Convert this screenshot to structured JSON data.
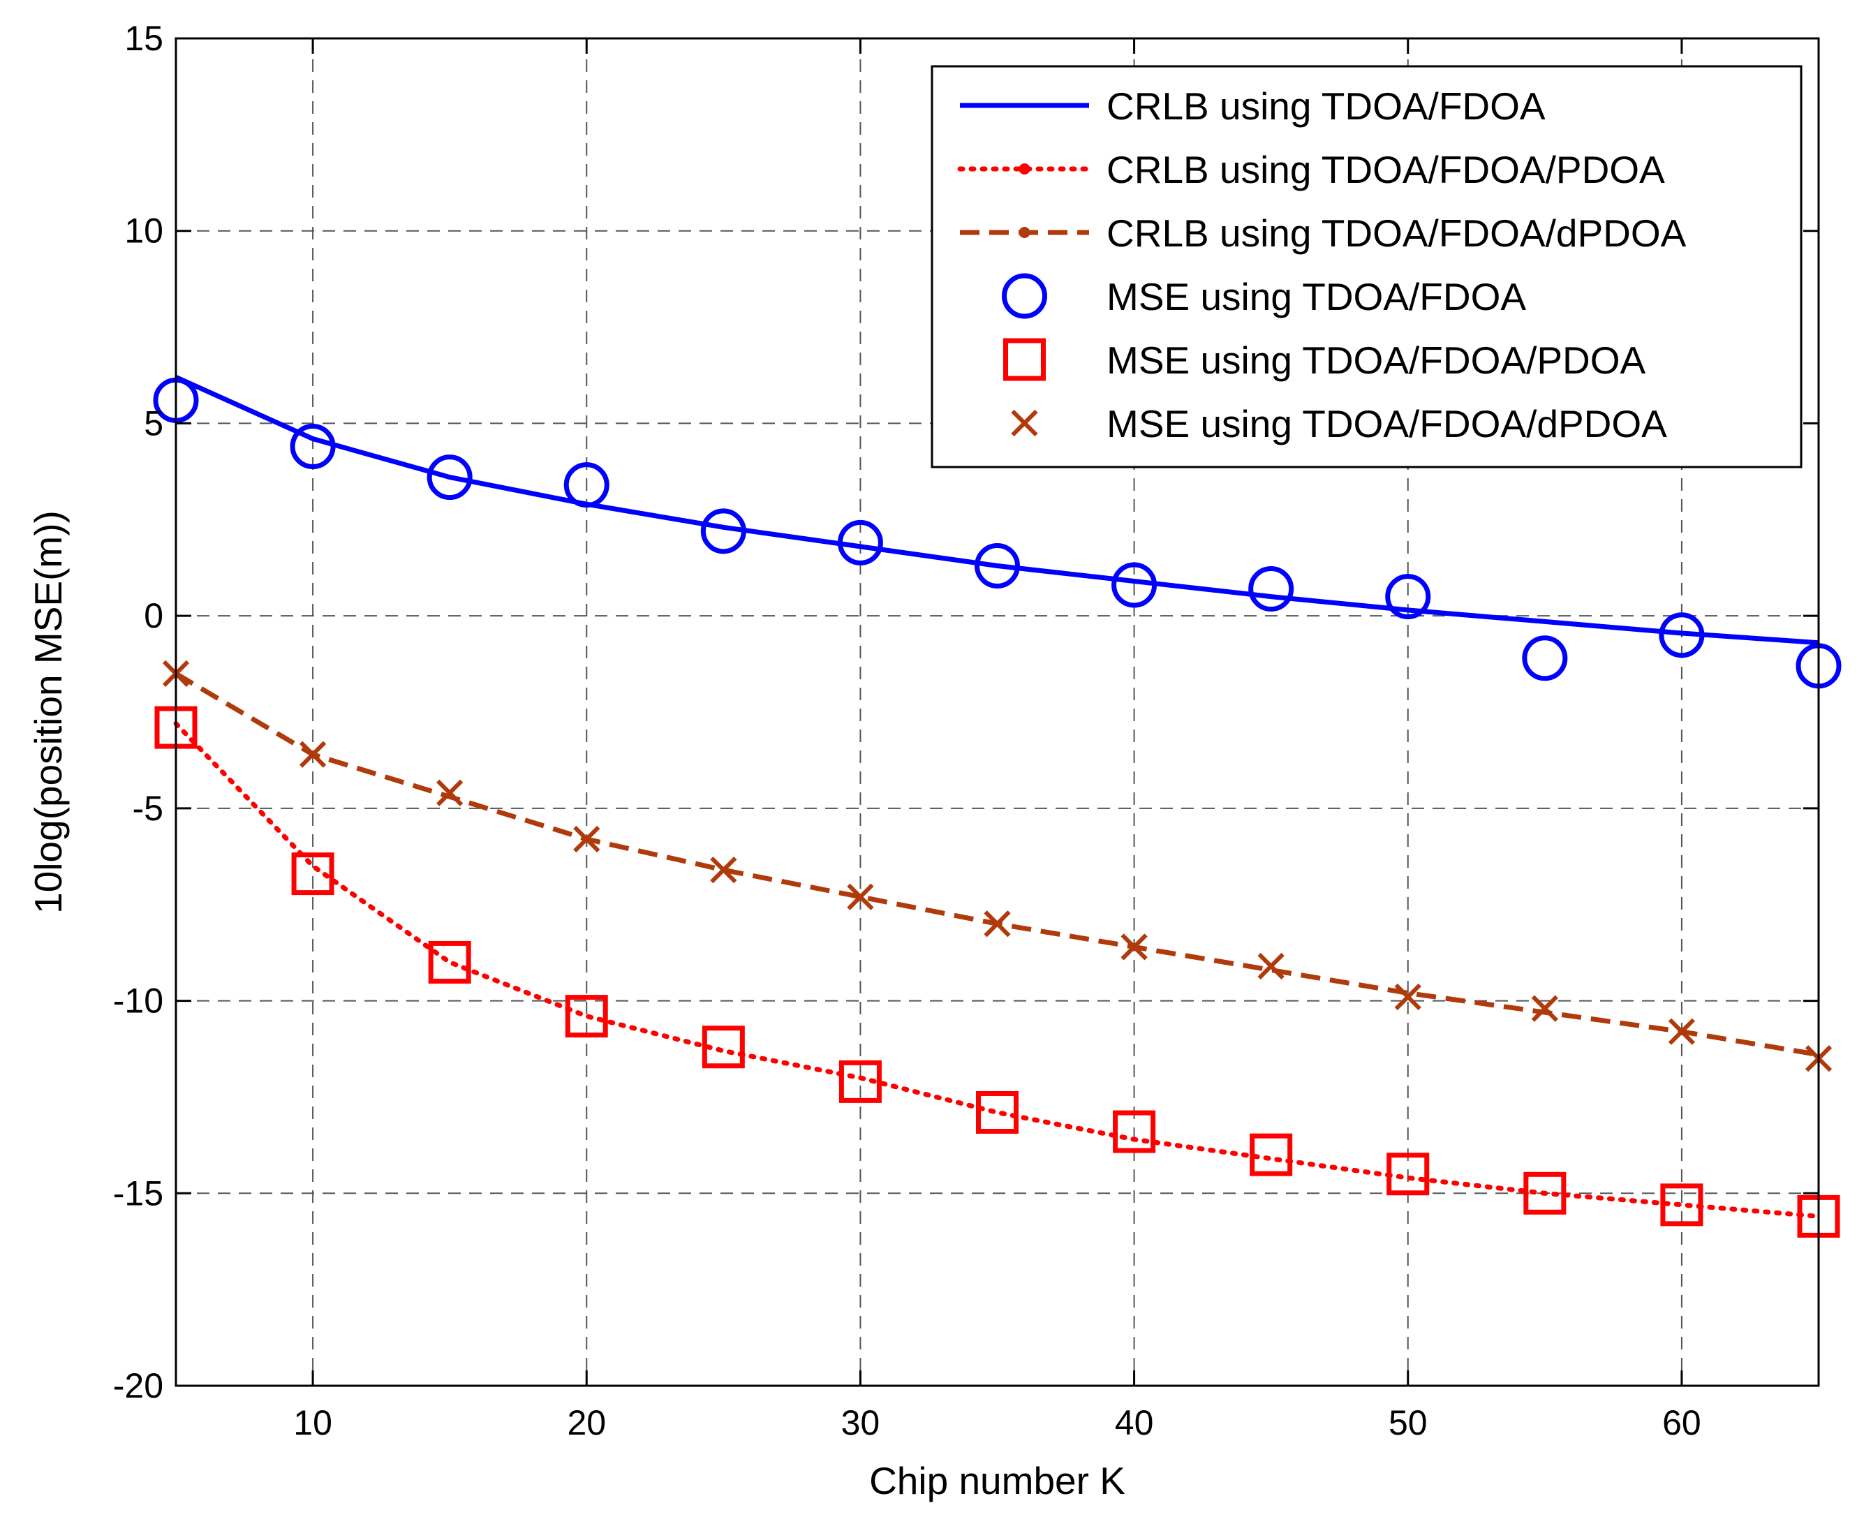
{
  "chart_data": {
    "type": "line",
    "title": "",
    "xlabel": "Chip number K",
    "ylabel": "10log(position MSE(m))",
    "xlim": [
      5,
      65
    ],
    "ylim": [
      -20,
      15
    ],
    "grid": true,
    "legend_position": "top-right",
    "x_ticks": [
      10,
      20,
      30,
      40,
      50,
      60
    ],
    "x_tick_labels": [
      "10",
      "20",
      "30",
      "40",
      "50",
      "60"
    ],
    "y_ticks": [
      15,
      10,
      5,
      0,
      -5,
      -10,
      -15,
      -20
    ],
    "y_tick_labels": [
      "15",
      "10",
      "5",
      "0",
      "-5",
      "-10",
      "-15",
      "-20"
    ],
    "x": [
      5,
      10,
      15,
      20,
      25,
      30,
      35,
      40,
      45,
      50,
      55,
      60,
      65
    ],
    "series": [
      {
        "name": "CRLB using TDOA/FDOA",
        "kind": "line",
        "line_style": "solid",
        "color": "#0000FF",
        "values": [
          6.2,
          4.6,
          3.6,
          2.9,
          2.3,
          1.8,
          1.3,
          0.9,
          0.5,
          0.15,
          -0.15,
          -0.45,
          -0.7
        ]
      },
      {
        "name": "CRLB using TDOA/FDOA/PDOA",
        "kind": "line",
        "line_style": "dotted",
        "color": "#FF0000",
        "values": [
          -2.8,
          -6.5,
          -9.0,
          -10.4,
          -11.3,
          -12.0,
          -12.9,
          -13.6,
          -14.1,
          -14.6,
          -15.0,
          -15.3,
          -15.6
        ]
      },
      {
        "name": "CRLB using TDOA/FDOA/dPDOA",
        "kind": "line",
        "line_style": "dashed",
        "color": "#B03A0A",
        "values": [
          -1.5,
          -3.6,
          -4.7,
          -5.8,
          -6.6,
          -7.3,
          -8.0,
          -8.6,
          -9.2,
          -9.8,
          -10.3,
          -10.8,
          -11.4
        ]
      },
      {
        "name": "MSE using TDOA/FDOA",
        "kind": "marker",
        "marker": "circle",
        "color": "#0000FF",
        "values": [
          5.6,
          4.4,
          3.6,
          3.4,
          2.2,
          1.9,
          1.3,
          0.8,
          0.7,
          0.5,
          -1.1,
          -0.5,
          -1.3
        ]
      },
      {
        "name": "MSE using TDOA/FDOA/PDOA",
        "kind": "marker",
        "marker": "square",
        "color": "#FF0000",
        "values": [
          -2.9,
          -6.7,
          -9.0,
          -10.4,
          -11.2,
          -12.1,
          -12.9,
          -13.4,
          -14.0,
          -14.5,
          -15.0,
          -15.3,
          -15.6
        ]
      },
      {
        "name": "MSE using TDOA/FDOA/dPDOA",
        "kind": "marker",
        "marker": "x",
        "color": "#B03A0A",
        "values": [
          -1.5,
          -3.6,
          -4.6,
          -5.8,
          -6.6,
          -7.3,
          -8.0,
          -8.6,
          -9.1,
          -9.9,
          -10.2,
          -10.8,
          -11.5
        ]
      }
    ]
  }
}
